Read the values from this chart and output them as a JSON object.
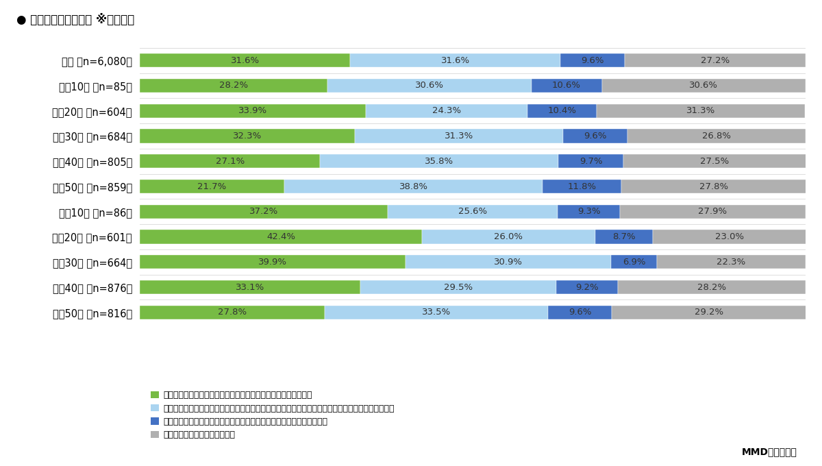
{
  "title": "● 個人間送金の認知度 ※性年代別",
  "categories": [
    "全体 （n=6,080）",
    "男性10代 （n=85）",
    "男性20代 （n=604）",
    "男性30代 （n=684）",
    "男性40代 （n=805）",
    "男性50代 （n=859）",
    "女性10代 （n=86）",
    "女性20代 （n=601）",
    "女性30代 （n=664）",
    "女性40代 （n=876）",
    "女性50代 （n=816）"
  ],
  "data": [
    [
      31.6,
      31.6,
      9.6,
      27.2
    ],
    [
      28.2,
      30.6,
      10.6,
      30.6
    ],
    [
      33.9,
      24.3,
      10.4,
      31.3
    ],
    [
      32.3,
      31.3,
      9.6,
      26.8
    ],
    [
      27.1,
      35.8,
      9.7,
      27.5
    ],
    [
      21.7,
      38.8,
      11.8,
      27.8
    ],
    [
      37.2,
      25.6,
      9.3,
      27.9
    ],
    [
      42.4,
      26.0,
      8.7,
      23.0
    ],
    [
      39.9,
      30.9,
      6.9,
      22.3
    ],
    [
      33.1,
      29.5,
      9.2,
      28.2
    ],
    [
      27.8,
      33.5,
      9.6,
      29.2
    ]
  ],
  "colors": [
    "#77bb44",
    "#aad4f0",
    "#4472c4",
    "#b0b0b0"
  ],
  "legend_labels": [
    "電子マネー機能を使っており、個人間送金を利用したことがある",
    "電子マネー機能を使っており、個人間送金をできることは知っていたが、一度も利用したことがない",
    "電子マネー機能を使っているが個人間送金をできることを知らなかった",
    "電子マネー機能を使っていない"
  ],
  "source_text": "MMD研究所調べ",
  "background_color": "#ffffff",
  "bar_height": 0.55,
  "title_fontsize": 12,
  "label_fontsize": 10.5,
  "bar_label_fontsize": 9.5,
  "legend_fontsize": 9
}
